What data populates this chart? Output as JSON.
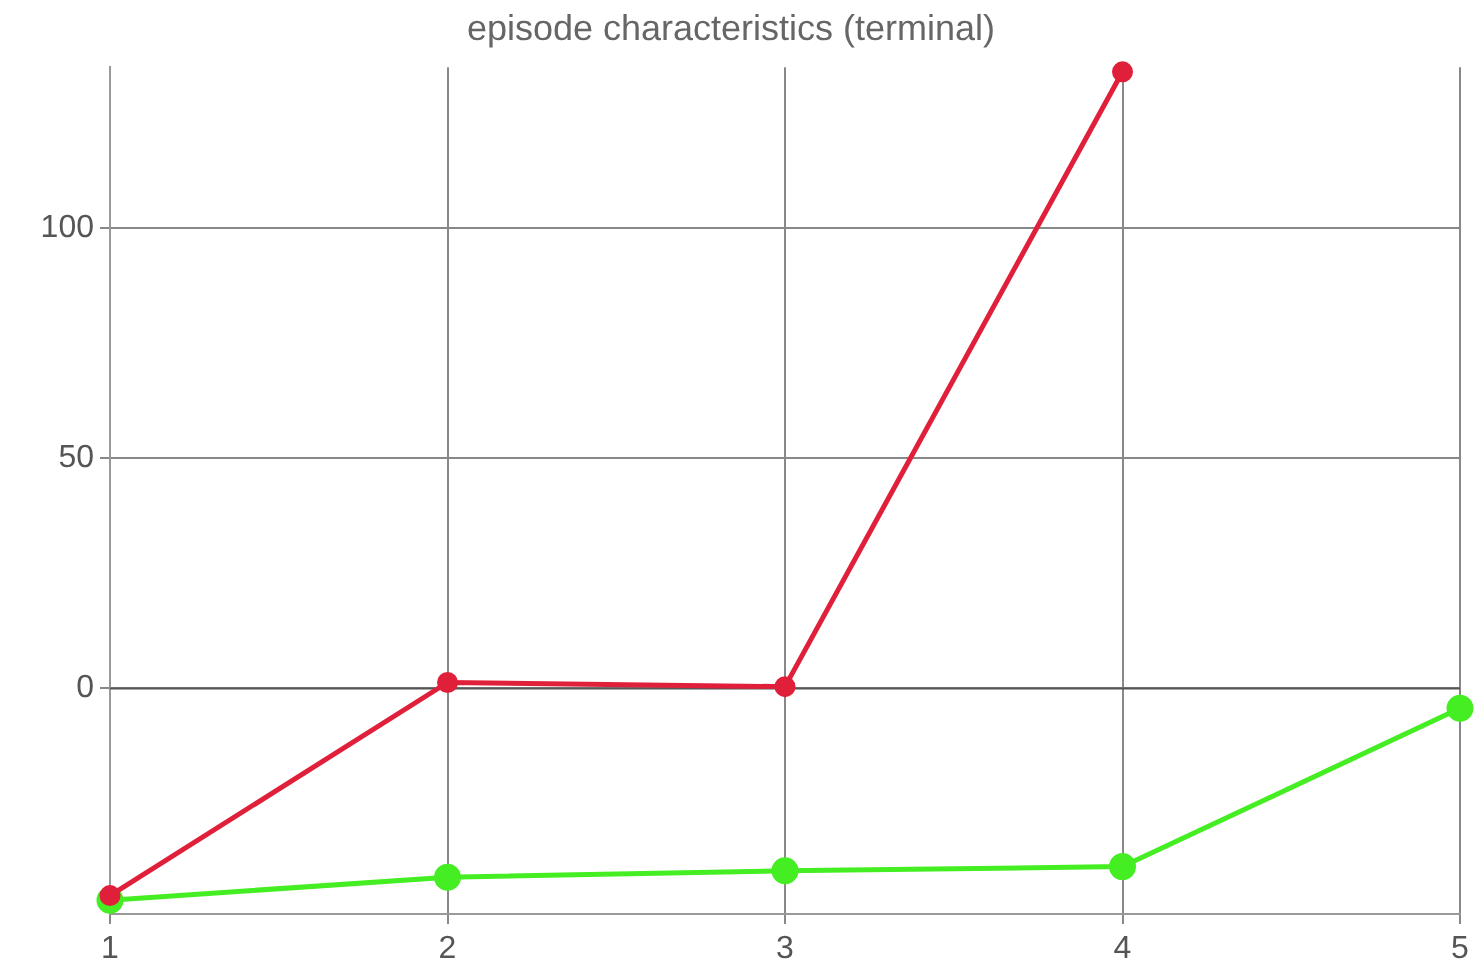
{
  "chart_data": {
    "type": "line",
    "title": "episode characteristics (terminal)",
    "x": [
      1,
      2,
      3,
      4,
      5
    ],
    "series": [
      {
        "color": "#e0203a",
        "values": [
          -45,
          1.3,
          0.4,
          134,
          null
        ]
      },
      {
        "color": "#44ee22",
        "values": [
          -46,
          -41,
          -39.6,
          -38.7,
          -4.3
        ]
      }
    ],
    "xlim": [
      1,
      5
    ],
    "xticks": [
      1,
      2,
      3,
      4,
      5
    ],
    "ylim": [
      -49,
      135
    ],
    "yticks": [
      0,
      50,
      100
    ],
    "grid": true,
    "legend": false,
    "marker": "circle",
    "line_style": "solid"
  }
}
